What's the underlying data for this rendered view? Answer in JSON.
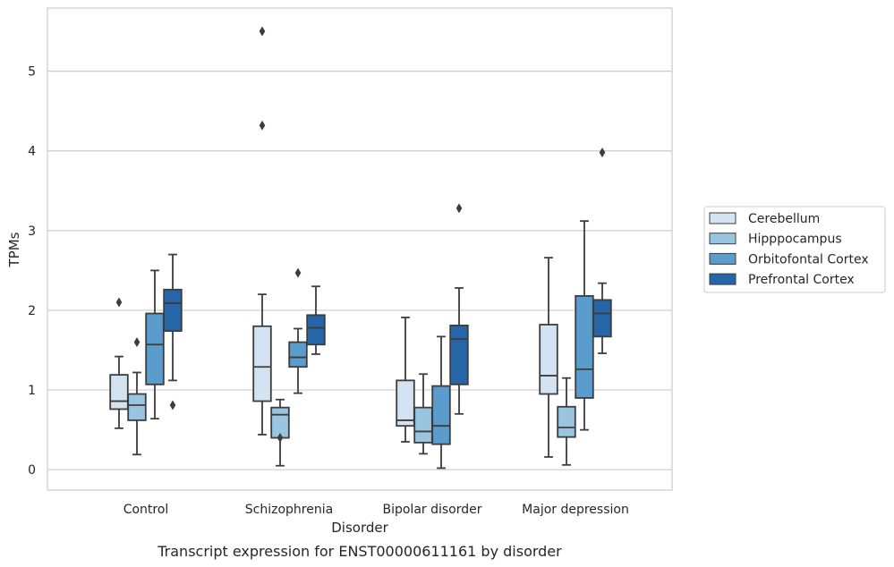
{
  "chart_data": {
    "type": "box",
    "caption": "Transcript expression for ENST00000611161 by disorder",
    "xlabel": "Disorder",
    "ylabel": "TPMs",
    "ylim": [
      -0.25,
      5.85
    ],
    "yticks": [
      0,
      1,
      2,
      3,
      4,
      5
    ],
    "grid": "horizontal",
    "legend_placement": "right",
    "categories": [
      "Control",
      "Schizophrenia",
      "Bipolar disorder",
      "Major depression"
    ],
    "series": [
      {
        "name": "Cerebellum",
        "color": "#d4e3f2",
        "boxes": [
          {
            "whisker_low": 0.52,
            "q1": 0.76,
            "median": 0.86,
            "q3": 1.19,
            "whisker_high": 1.42,
            "outliers": [
              2.1
            ]
          },
          {
            "whisker_low": 0.44,
            "q1": 0.86,
            "median": 1.29,
            "q3": 1.8,
            "whisker_high": 2.2,
            "outliers": [
              4.32,
              5.5
            ]
          },
          {
            "whisker_low": 0.35,
            "q1": 0.55,
            "median": 0.62,
            "q3": 1.12,
            "whisker_high": 1.91,
            "outliers": []
          },
          {
            "whisker_low": 0.16,
            "q1": 0.95,
            "median": 1.18,
            "q3": 1.82,
            "whisker_high": 2.66,
            "outliers": []
          }
        ]
      },
      {
        "name": "Hipppocampus",
        "color": "#9ac5e0",
        "boxes": [
          {
            "whisker_low": 0.19,
            "q1": 0.62,
            "median": 0.81,
            "q3": 0.95,
            "whisker_high": 1.22,
            "outliers": [
              1.6
            ]
          },
          {
            "whisker_low": 0.05,
            "q1": 0.4,
            "median": 0.69,
            "q3": 0.78,
            "whisker_high": 0.88,
            "outliers": [
              0.4
            ]
          },
          {
            "whisker_low": 0.2,
            "q1": 0.34,
            "median": 0.48,
            "q3": 0.78,
            "whisker_high": 1.2,
            "outliers": []
          },
          {
            "whisker_low": 0.06,
            "q1": 0.41,
            "median": 0.53,
            "q3": 0.79,
            "whisker_high": 1.15,
            "outliers": []
          }
        ]
      },
      {
        "name": "Orbitofontal Cortex",
        "color": "#5a9ccc",
        "boxes": [
          {
            "whisker_low": 0.64,
            "q1": 1.07,
            "median": 1.57,
            "q3": 1.96,
            "whisker_high": 2.5,
            "outliers": []
          },
          {
            "whisker_low": 0.96,
            "q1": 1.29,
            "median": 1.41,
            "q3": 1.6,
            "whisker_high": 1.77,
            "outliers": [
              2.47
            ]
          },
          {
            "whisker_low": 0.02,
            "q1": 0.32,
            "median": 0.55,
            "q3": 1.05,
            "whisker_high": 1.67,
            "outliers": []
          },
          {
            "whisker_low": 0.5,
            "q1": 0.9,
            "median": 1.26,
            "q3": 2.18,
            "whisker_high": 3.12,
            "outliers": []
          }
        ]
      },
      {
        "name": "Prefrontal Cortex",
        "color": "#2565a8",
        "boxes": [
          {
            "whisker_low": 1.12,
            "q1": 1.74,
            "median": 2.09,
            "q3": 2.26,
            "whisker_high": 2.7,
            "outliers": [
              0.81
            ]
          },
          {
            "whisker_low": 1.45,
            "q1": 1.57,
            "median": 1.78,
            "q3": 1.94,
            "whisker_high": 2.3,
            "outliers": []
          },
          {
            "whisker_low": 0.7,
            "q1": 1.07,
            "median": 1.64,
            "q3": 1.81,
            "whisker_high": 2.28,
            "outliers": [
              3.28
            ]
          },
          {
            "whisker_low": 1.46,
            "q1": 1.67,
            "median": 1.96,
            "q3": 2.13,
            "whisker_high": 2.34,
            "outliers": [
              3.98
            ]
          }
        ]
      }
    ]
  }
}
